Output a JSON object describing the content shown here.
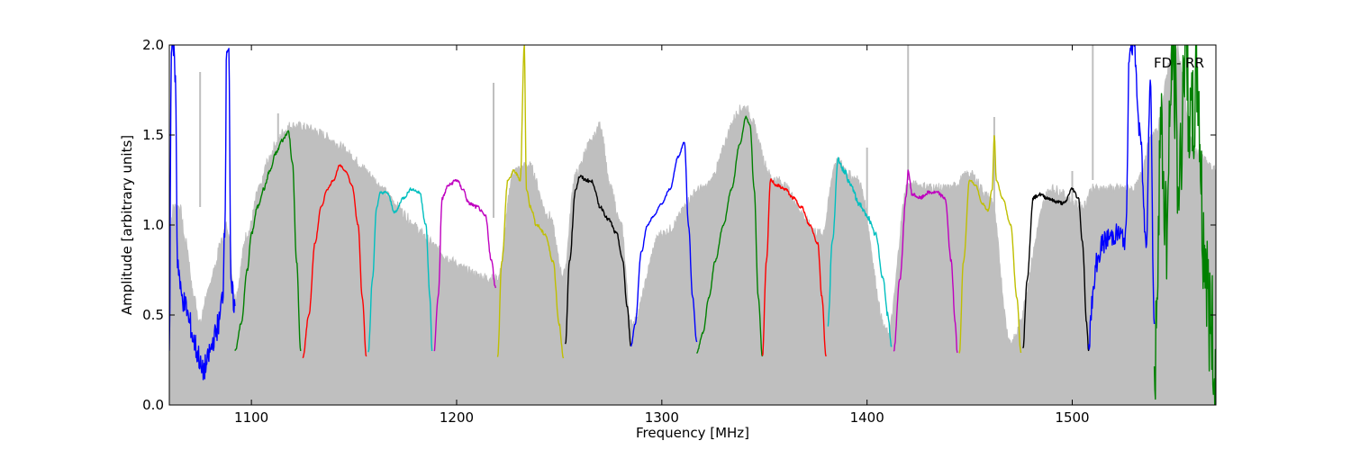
{
  "chart_data": {
    "type": "line",
    "annotation": "FD - RR",
    "xlabel": "Frequency [MHz]",
    "ylabel": "Amplitude [arbitrary units]",
    "xlim": [
      1060,
      1570
    ],
    "ylim": [
      0.0,
      2.0
    ],
    "xticks": [
      1100,
      1200,
      1300,
      1400,
      1500
    ],
    "xtick_labels": [
      "1100",
      "1200",
      "1300",
      "1400",
      "1500"
    ],
    "yticks": [
      0.0,
      0.5,
      1.0,
      1.5,
      2.0
    ],
    "ytick_labels": [
      "0.0",
      "0.5",
      "1.0",
      "1.5",
      "2.0"
    ],
    "grid": false,
    "background_series": {
      "color": "#bfbfbf",
      "description": "unflagged amplitude (grey band)",
      "x": [
        1060,
        1062,
        1065,
        1068,
        1072,
        1075,
        1078,
        1082,
        1085,
        1088,
        1092,
        1098,
        1104,
        1108,
        1112,
        1116,
        1119,
        1220,
        1228,
        1235,
        1245,
        1252,
        1258,
        1265,
        1270,
        1275,
        1280,
        1285,
        1300,
        1320,
        1340,
        1355,
        1378,
        1385,
        1395,
        1410,
        1420,
        1440,
        1450,
        1460,
        1470,
        1490,
        1505,
        1510,
        1520,
        1530,
        1540,
        1550,
        1560,
        1570
      ],
      "y": [
        0.9,
        1.1,
        1.1,
        0.9,
        0.6,
        0.45,
        0.6,
        0.75,
        0.9,
        1.0,
        0.6,
        0.95,
        1.2,
        1.35,
        1.45,
        1.52,
        1.55,
        0.7,
        1.3,
        1.33,
        1.05,
        0.72,
        1.28,
        1.45,
        1.55,
        1.2,
        1.0,
        0.45,
        0.95,
        1.2,
        1.65,
        1.25,
        0.95,
        1.35,
        1.25,
        0.4,
        1.22,
        1.2,
        1.28,
        1.15,
        0.35,
        1.2,
        1.1,
        1.2,
        1.2,
        1.2,
        1.5,
        2.0,
        1.4,
        1.3
      ],
      "spikes": [
        {
          "x": 1075,
          "y": 1.85
        },
        {
          "x": 1113,
          "y": 1.62
        },
        {
          "x": 1218,
          "y": 1.79
        },
        {
          "x": 1400,
          "y": 1.43
        },
        {
          "x": 1420,
          "y": 2.0
        },
        {
          "x": 1462,
          "y": 1.6
        },
        {
          "x": 1500,
          "y": 1.3
        },
        {
          "x": 1510,
          "y": 2.0
        }
      ]
    },
    "series": [
      {
        "color": "#0000ff",
        "x": [
          1060,
          1061,
          1062,
          1063,
          1064,
          1066,
          1068,
          1070,
          1072,
          1074,
          1076,
          1078,
          1080,
          1082,
          1084,
          1086,
          1087,
          1088,
          1089,
          1090,
          1092
        ],
        "y": [
          0.3,
          2.0,
          2.0,
          1.8,
          0.8,
          0.6,
          0.55,
          0.45,
          0.35,
          0.28,
          0.18,
          0.22,
          0.3,
          0.38,
          0.45,
          0.6,
          1.0,
          2.0,
          2.0,
          0.65,
          0.55
        ],
        "noise": 0.07
      },
      {
        "color": "#008000",
        "x": [
          1092,
          1095,
          1098,
          1100,
          1103,
          1106,
          1109,
          1112,
          1115,
          1118,
          1120,
          1122,
          1124
        ],
        "y": [
          0.3,
          0.45,
          0.75,
          0.95,
          1.1,
          1.2,
          1.3,
          1.4,
          1.47,
          1.52,
          1.35,
          0.8,
          0.3
        ],
        "noise": 0.01
      },
      {
        "color": "#ff0000",
        "x": [
          1125,
          1128,
          1131,
          1134,
          1137,
          1140,
          1143,
          1146,
          1149,
          1152,
          1154,
          1156
        ],
        "y": [
          0.26,
          0.5,
          0.9,
          1.1,
          1.2,
          1.25,
          1.33,
          1.3,
          1.22,
          1.0,
          0.6,
          0.27
        ],
        "noise": 0.005
      },
      {
        "color": "#00bfbf",
        "x": [
          1157,
          1159,
          1161,
          1163,
          1166,
          1170,
          1174,
          1178,
          1182,
          1185,
          1187,
          1188
        ],
        "y": [
          0.3,
          0.7,
          1.1,
          1.18,
          1.18,
          1.07,
          1.15,
          1.2,
          1.18,
          1.0,
          0.6,
          0.3
        ],
        "noise": 0.008
      },
      {
        "color": "#bf00bf",
        "x": [
          1189,
          1191,
          1193,
          1196,
          1200,
          1203,
          1206,
          1210,
          1214,
          1217,
          1219
        ],
        "y": [
          0.3,
          0.6,
          1.15,
          1.22,
          1.25,
          1.2,
          1.12,
          1.1,
          1.05,
          0.8,
          0.65
        ],
        "noise": 0.01
      },
      {
        "color": "#bfbf00",
        "x": [
          1220,
          1222,
          1225,
          1228,
          1231,
          1233,
          1234,
          1236,
          1239,
          1243,
          1247,
          1250,
          1252
        ],
        "y": [
          0.27,
          0.8,
          1.25,
          1.3,
          1.25,
          2.0,
          1.2,
          1.1,
          1.0,
          0.95,
          0.8,
          0.45,
          0.26
        ],
        "noise": 0.01
      },
      {
        "color": "#000000",
        "x": [
          1253,
          1255,
          1258,
          1260,
          1263,
          1266,
          1270,
          1274,
          1278,
          1281,
          1283,
          1285
        ],
        "y": [
          0.33,
          0.8,
          1.2,
          1.27,
          1.25,
          1.24,
          1.1,
          1.03,
          0.95,
          0.8,
          0.55,
          0.33
        ],
        "noise": 0.01
      },
      {
        "color": "#0000ff",
        "x": [
          1285,
          1287,
          1290,
          1293,
          1296,
          1300,
          1304,
          1308,
          1311,
          1313,
          1315,
          1317
        ],
        "y": [
          0.33,
          0.45,
          0.85,
          1.0,
          1.05,
          1.12,
          1.2,
          1.38,
          1.46,
          1.0,
          0.6,
          0.35
        ],
        "noise": 0.005
      },
      {
        "color": "#008000",
        "x": [
          1317,
          1320,
          1323,
          1326,
          1330,
          1334,
          1338,
          1341,
          1343,
          1345,
          1347,
          1349
        ],
        "y": [
          0.29,
          0.4,
          0.6,
          0.8,
          1.0,
          1.2,
          1.45,
          1.6,
          1.55,
          1.2,
          0.6,
          0.27
        ],
        "noise": 0.005
      },
      {
        "color": "#ff0000",
        "x": [
          1349,
          1351,
          1353,
          1356,
          1360,
          1364,
          1368,
          1372,
          1376,
          1378,
          1380
        ],
        "y": [
          0.27,
          0.8,
          1.25,
          1.22,
          1.2,
          1.15,
          1.1,
          1.0,
          0.9,
          0.6,
          0.27
        ],
        "noise": 0.008
      },
      {
        "color": "#00bfbf",
        "x": [
          1381,
          1383,
          1386,
          1389,
          1392,
          1396,
          1400,
          1404,
          1408,
          1410,
          1412
        ],
        "y": [
          0.45,
          0.9,
          1.36,
          1.3,
          1.22,
          1.12,
          1.05,
          0.95,
          0.7,
          0.5,
          0.33
        ],
        "noise": 0.015
      },
      {
        "color": "#bf00bf",
        "x": [
          1413,
          1416,
          1419,
          1420,
          1422,
          1426,
          1430,
          1434,
          1438,
          1441,
          1443,
          1444
        ],
        "y": [
          0.3,
          0.7,
          1.15,
          1.3,
          1.17,
          1.15,
          1.18,
          1.18,
          1.15,
          0.8,
          0.45,
          0.29
        ],
        "noise": 0.01
      },
      {
        "color": "#bfbf00",
        "x": [
          1445,
          1447,
          1450,
          1453,
          1456,
          1459,
          1461,
          1462,
          1463,
          1466,
          1470,
          1473,
          1475
        ],
        "y": [
          0.29,
          0.8,
          1.25,
          1.22,
          1.12,
          1.08,
          1.2,
          1.5,
          1.25,
          1.15,
          1.0,
          0.6,
          0.29
        ],
        "noise": 0.005
      },
      {
        "color": "#000000",
        "x": [
          1476,
          1478,
          1481,
          1484,
          1488,
          1492,
          1496,
          1500,
          1503,
          1505,
          1507,
          1508
        ],
        "y": [
          0.32,
          0.7,
          1.15,
          1.17,
          1.15,
          1.13,
          1.12,
          1.2,
          1.15,
          0.9,
          0.45,
          0.3
        ],
        "noise": 0.01
      },
      {
        "color": "#0000ff",
        "x": [
          1508,
          1510,
          1512,
          1515,
          1518,
          1522,
          1526,
          1528,
          1530,
          1533,
          1536,
          1538,
          1540
        ],
        "y": [
          0.35,
          0.6,
          0.8,
          0.9,
          0.93,
          0.95,
          0.92,
          2.0,
          2.0,
          1.5,
          0.9,
          1.8,
          0.45
        ],
        "noise": 0.06
      },
      {
        "color": "#008000",
        "x": [
          1540,
          1543,
          1546,
          1549,
          1552,
          1555,
          1558,
          1561,
          1564,
          1567,
          1570
        ],
        "y": [
          0.1,
          1.5,
          1.0,
          2.0,
          1.2,
          2.0,
          1.5,
          1.8,
          0.9,
          0.5,
          0.15
        ],
        "noise": 0.35
      }
    ]
  }
}
